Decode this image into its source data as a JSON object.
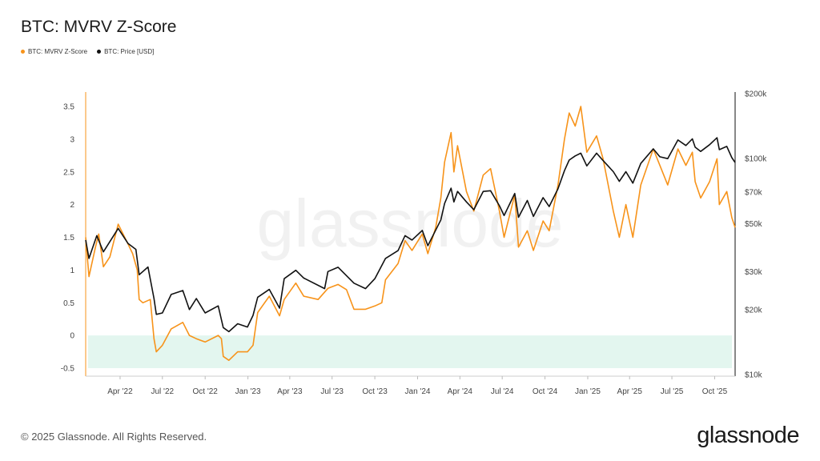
{
  "title": "BTC: MVRV Z-Score",
  "legend": [
    {
      "label": "BTC: MVRV Z-Score",
      "color": "#f7931a"
    },
    {
      "label": "BTC: Price [USD]",
      "color": "#111111"
    }
  ],
  "footer": "© 2025 Glassnode. All Rights Reserved.",
  "brand": "glassnode",
  "watermark": "glassnode",
  "chart_data": {
    "type": "line",
    "x_ticks": [
      "Apr '22",
      "Jul '22",
      "Oct '22",
      "Jan '23",
      "Apr '23",
      "Jul '23",
      "Oct '23",
      "Jan '24",
      "Apr '24",
      "Jul '24",
      "Oct '24",
      "Jan '25",
      "Apr '25",
      "Jul '25",
      "Oct '25"
    ],
    "x_range": [
      "2022-01-17",
      "2025-11-14"
    ],
    "y_left": {
      "ticks": [
        3.5,
        3,
        2.5,
        2,
        1.5,
        1,
        0.5,
        0,
        -0.5
      ],
      "labels": [
        "3.5",
        "3",
        "2.5",
        "2",
        "1.5",
        "1",
        "0.5",
        "0",
        "-0.5"
      ],
      "range": [
        -0.5,
        3.5
      ]
    },
    "y_right": {
      "scale": "log",
      "ticks": [
        200000,
        100000,
        70000,
        50000,
        30000,
        20000,
        10000
      ],
      "labels": [
        "$200k",
        "$100k",
        "$70k",
        "$50k",
        "$30k",
        "$20k",
        "$10k"
      ],
      "range": [
        10000,
        200000
      ]
    },
    "zones": [
      {
        "from": -0.5,
        "to": 0,
        "color": "#e3f6ef"
      }
    ],
    "series": [
      {
        "name": "BTC: MVRV Z-Score",
        "axis": "left",
        "color": "#f7931a",
        "points": [
          [
            "2022-01-17",
            1.5
          ],
          [
            "2022-01-24",
            0.9
          ],
          [
            "2022-02-07",
            1.35
          ],
          [
            "2022-02-14",
            1.55
          ],
          [
            "2022-02-24",
            1.05
          ],
          [
            "2022-03-10",
            1.2
          ],
          [
            "2022-03-28",
            1.7
          ],
          [
            "2022-04-18",
            1.4
          ],
          [
            "2022-04-28",
            1.25
          ],
          [
            "2022-05-08",
            1.0
          ],
          [
            "2022-05-12",
            0.55
          ],
          [
            "2022-05-20",
            0.5
          ],
          [
            "2022-06-05",
            0.55
          ],
          [
            "2022-06-13",
            -0.05
          ],
          [
            "2022-06-18",
            -0.25
          ],
          [
            "2022-07-01",
            -0.15
          ],
          [
            "2022-07-20",
            0.1
          ],
          [
            "2022-08-14",
            0.2
          ],
          [
            "2022-08-28",
            0.0
          ],
          [
            "2022-09-12",
            -0.05
          ],
          [
            "2022-10-01",
            -0.1
          ],
          [
            "2022-10-29",
            0.0
          ],
          [
            "2022-11-05",
            -0.05
          ],
          [
            "2022-11-09",
            -0.32
          ],
          [
            "2022-11-21",
            -0.38
          ],
          [
            "2022-12-10",
            -0.25
          ],
          [
            "2022-12-31",
            -0.25
          ],
          [
            "2023-01-12",
            -0.15
          ],
          [
            "2023-01-22",
            0.35
          ],
          [
            "2023-02-16",
            0.6
          ],
          [
            "2023-03-10",
            0.3
          ],
          [
            "2023-03-20",
            0.55
          ],
          [
            "2023-04-14",
            0.8
          ],
          [
            "2023-05-01",
            0.6
          ],
          [
            "2023-06-01",
            0.55
          ],
          [
            "2023-06-22",
            0.72
          ],
          [
            "2023-07-14",
            0.78
          ],
          [
            "2023-08-01",
            0.7
          ],
          [
            "2023-08-17",
            0.4
          ],
          [
            "2023-09-11",
            0.4
          ],
          [
            "2023-10-01",
            0.45
          ],
          [
            "2023-10-16",
            0.5
          ],
          [
            "2023-10-24",
            0.85
          ],
          [
            "2023-11-20",
            1.1
          ],
          [
            "2023-12-05",
            1.45
          ],
          [
            "2023-12-20",
            1.3
          ],
          [
            "2024-01-11",
            1.55
          ],
          [
            "2024-01-23",
            1.25
          ],
          [
            "2024-02-09",
            1.65
          ],
          [
            "2024-02-20",
            2.1
          ],
          [
            "2024-02-28",
            2.65
          ],
          [
            "2024-03-13",
            3.1
          ],
          [
            "2024-03-19",
            2.5
          ],
          [
            "2024-03-27",
            2.9
          ],
          [
            "2024-04-15",
            2.2
          ],
          [
            "2024-05-01",
            1.9
          ],
          [
            "2024-05-21",
            2.45
          ],
          [
            "2024-06-06",
            2.55
          ],
          [
            "2024-06-25",
            1.9
          ],
          [
            "2024-07-05",
            1.5
          ],
          [
            "2024-07-28",
            2.15
          ],
          [
            "2024-08-05",
            1.35
          ],
          [
            "2024-08-24",
            1.6
          ],
          [
            "2024-09-06",
            1.3
          ],
          [
            "2024-09-27",
            1.75
          ],
          [
            "2024-10-10",
            1.6
          ],
          [
            "2024-10-29",
            2.3
          ],
          [
            "2024-11-12",
            3.0
          ],
          [
            "2024-11-22",
            3.4
          ],
          [
            "2024-12-05",
            3.2
          ],
          [
            "2024-12-17",
            3.5
          ],
          [
            "2024-12-30",
            2.8
          ],
          [
            "2025-01-20",
            3.05
          ],
          [
            "2025-02-03",
            2.7
          ],
          [
            "2025-02-25",
            1.9
          ],
          [
            "2025-03-10",
            1.5
          ],
          [
            "2025-03-24",
            2.0
          ],
          [
            "2025-04-08",
            1.5
          ],
          [
            "2025-04-25",
            2.3
          ],
          [
            "2025-05-22",
            2.85
          ],
          [
            "2025-06-05",
            2.6
          ],
          [
            "2025-06-22",
            2.3
          ],
          [
            "2025-07-14",
            2.85
          ],
          [
            "2025-07-31",
            2.6
          ],
          [
            "2025-08-14",
            2.8
          ],
          [
            "2025-08-20",
            2.35
          ],
          [
            "2025-09-01",
            2.1
          ],
          [
            "2025-09-20",
            2.35
          ],
          [
            "2025-10-06",
            2.7
          ],
          [
            "2025-10-11",
            2.0
          ],
          [
            "2025-10-27",
            2.2
          ],
          [
            "2025-11-07",
            1.8
          ],
          [
            "2025-11-14",
            1.65
          ]
        ]
      },
      {
        "name": "BTC: Price [USD]",
        "axis": "right",
        "color": "#111111",
        "points": [
          [
            "2022-01-17",
            42000
          ],
          [
            "2022-01-24",
            34500
          ],
          [
            "2022-02-10",
            44000
          ],
          [
            "2022-02-24",
            37000
          ],
          [
            "2022-03-28",
            47500
          ],
          [
            "2022-04-18",
            40500
          ],
          [
            "2022-05-05",
            38000
          ],
          [
            "2022-05-12",
            29000
          ],
          [
            "2022-05-31",
            31500
          ],
          [
            "2022-06-13",
            22500
          ],
          [
            "2022-06-18",
            19000
          ],
          [
            "2022-07-01",
            19300
          ],
          [
            "2022-07-20",
            23500
          ],
          [
            "2022-08-14",
            24500
          ],
          [
            "2022-08-28",
            20000
          ],
          [
            "2022-09-12",
            22500
          ],
          [
            "2022-10-01",
            19300
          ],
          [
            "2022-10-29",
            20800
          ],
          [
            "2022-11-09",
            16500
          ],
          [
            "2022-11-21",
            15800
          ],
          [
            "2022-12-10",
            17200
          ],
          [
            "2022-12-31",
            16600
          ],
          [
            "2023-01-12",
            18800
          ],
          [
            "2023-01-22",
            22800
          ],
          [
            "2023-02-16",
            24800
          ],
          [
            "2023-03-10",
            20300
          ],
          [
            "2023-03-20",
            27800
          ],
          [
            "2023-04-14",
            30400
          ],
          [
            "2023-05-01",
            28000
          ],
          [
            "2023-06-15",
            25000
          ],
          [
            "2023-06-22",
            30000
          ],
          [
            "2023-07-14",
            31400
          ],
          [
            "2023-08-17",
            26500
          ],
          [
            "2023-09-11",
            25000
          ],
          [
            "2023-10-01",
            27800
          ],
          [
            "2023-10-24",
            34500
          ],
          [
            "2023-11-20",
            37500
          ],
          [
            "2023-12-05",
            44000
          ],
          [
            "2023-12-20",
            42000
          ],
          [
            "2024-01-11",
            46500
          ],
          [
            "2024-01-23",
            39500
          ],
          [
            "2024-02-20",
            52000
          ],
          [
            "2024-02-28",
            62000
          ],
          [
            "2024-03-13",
            73000
          ],
          [
            "2024-03-19",
            63000
          ],
          [
            "2024-03-27",
            70500
          ],
          [
            "2024-04-15",
            63000
          ],
          [
            "2024-05-01",
            58000
          ],
          [
            "2024-05-21",
            70500
          ],
          [
            "2024-06-06",
            71000
          ],
          [
            "2024-06-25",
            60500
          ],
          [
            "2024-07-05",
            54500
          ],
          [
            "2024-07-28",
            69000
          ],
          [
            "2024-08-05",
            53500
          ],
          [
            "2024-08-24",
            64000
          ],
          [
            "2024-09-06",
            54000
          ],
          [
            "2024-09-27",
            66000
          ],
          [
            "2024-10-10",
            60000
          ],
          [
            "2024-10-29",
            72500
          ],
          [
            "2024-11-12",
            88000
          ],
          [
            "2024-11-22",
            98500
          ],
          [
            "2024-12-05",
            103000
          ],
          [
            "2024-12-17",
            106000
          ],
          [
            "2024-12-30",
            92500
          ],
          [
            "2025-01-20",
            106000
          ],
          [
            "2025-02-03",
            98000
          ],
          [
            "2025-02-25",
            87000
          ],
          [
            "2025-03-10",
            78500
          ],
          [
            "2025-03-24",
            87000
          ],
          [
            "2025-04-08",
            77000
          ],
          [
            "2025-04-25",
            95000
          ],
          [
            "2025-05-22",
            111000
          ],
          [
            "2025-06-05",
            102000
          ],
          [
            "2025-06-22",
            100000
          ],
          [
            "2025-07-14",
            122000
          ],
          [
            "2025-07-31",
            115000
          ],
          [
            "2025-08-14",
            123500
          ],
          [
            "2025-08-20",
            113000
          ],
          [
            "2025-09-01",
            108000
          ],
          [
            "2025-09-20",
            116000
          ],
          [
            "2025-10-06",
            125000
          ],
          [
            "2025-10-11",
            110000
          ],
          [
            "2025-10-27",
            114000
          ],
          [
            "2025-11-07",
            101000
          ],
          [
            "2025-11-14",
            96000
          ]
        ]
      }
    ]
  }
}
